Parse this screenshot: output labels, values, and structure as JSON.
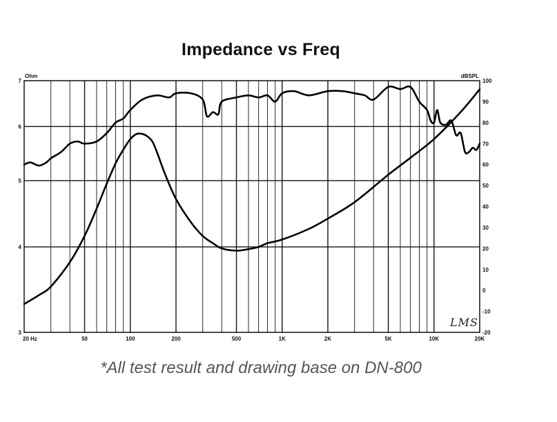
{
  "title": "Impedance vs Freq",
  "footnote": "*All test result and drawing base on DN-800",
  "logo_text": "LMS",
  "chart_data": {
    "type": "line",
    "title": "Impedance vs Freq",
    "x_scale": "log",
    "xlim": [
      20,
      20000
    ],
    "x_tick_values": [
      20,
      50,
      100,
      200,
      500,
      1000,
      2000,
      5000,
      10000,
      20000
    ],
    "x_tick_labels": [
      "20 Hz",
      "50",
      "100",
      "200",
      "500",
      "1K",
      "2K",
      "5K",
      "10K",
      "20K"
    ],
    "left_axis": {
      "label": "Ohm",
      "scale": "log",
      "ylim": [
        3,
        7
      ],
      "tick_values": [
        3,
        4,
        5,
        6,
        7
      ],
      "tick_labels": [
        "3",
        "4",
        "5",
        "6",
        "7"
      ]
    },
    "right_axis": {
      "label": "dBSPL",
      "scale": "linear",
      "ylim": [
        -20,
        100
      ],
      "tick_values": [
        -20,
        -10,
        0,
        10,
        20,
        30,
        40,
        50,
        60,
        70,
        80,
        90,
        100
      ],
      "tick_labels": [
        "-20",
        "-10",
        "0",
        "10",
        "20",
        "30",
        "40",
        "50",
        "60",
        "70",
        "80",
        "90",
        "100"
      ]
    },
    "grid": true,
    "series": [
      {
        "axis": "left",
        "x": [
          20,
          25,
          30,
          40,
          50,
          60,
          70,
          80,
          90,
          100,
          110,
          120,
          130,
          140,
          150,
          170,
          200,
          250,
          300,
          350,
          400,
          500,
          600,
          700,
          800,
          1000,
          1500,
          2000,
          3000,
          5000,
          7000,
          10000,
          15000,
          20000
        ],
        "values": [
          3.3,
          3.4,
          3.5,
          3.8,
          4.15,
          4.55,
          4.95,
          5.3,
          5.55,
          5.75,
          5.85,
          5.85,
          5.8,
          5.7,
          5.5,
          5.1,
          4.7,
          4.35,
          4.15,
          4.05,
          3.98,
          3.95,
          3.97,
          4.0,
          4.05,
          4.1,
          4.25,
          4.4,
          4.65,
          5.1,
          5.4,
          5.75,
          6.3,
          6.8
        ]
      },
      {
        "axis": "right",
        "x": [
          20,
          22,
          25,
          28,
          30,
          35,
          40,
          45,
          50,
          60,
          70,
          80,
          90,
          100,
          120,
          150,
          180,
          200,
          250,
          300,
          320,
          350,
          380,
          400,
          500,
          600,
          700,
          800,
          900,
          1000,
          1200,
          1500,
          2000,
          2500,
          3000,
          3500,
          4000,
          5000,
          6000,
          7000,
          8000,
          9000,
          9500,
          10000,
          10500,
          11000,
          12000,
          13000,
          14000,
          15000,
          16000,
          17000,
          18000,
          19000,
          20000
        ],
        "values": [
          60,
          61,
          59.5,
          61,
          63,
          66,
          70,
          71,
          70,
          71,
          75,
          80,
          82,
          86,
          91,
          93,
          92,
          94,
          94,
          91,
          83,
          85,
          84,
          90,
          92,
          93,
          92,
          93,
          90,
          94,
          95,
          93,
          95,
          95,
          94,
          93,
          91,
          97,
          96,
          97,
          90,
          86,
          81,
          80,
          86,
          80,
          79,
          81,
          74,
          75,
          66,
          66,
          68,
          67,
          70
        ]
      }
    ]
  }
}
